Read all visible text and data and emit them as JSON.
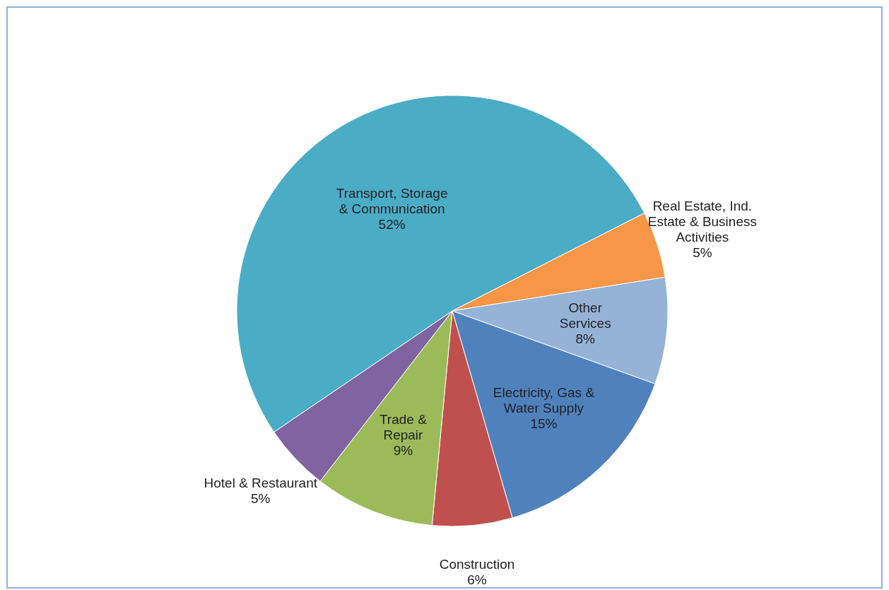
{
  "chart_data": {
    "type": "pie",
    "categories": [
      "Real Estate, Ind. Estate & Business Activities",
      "Other Services",
      "Electricity, Gas & Water Supply",
      "Construction",
      "Trade & Repair",
      "Hotel & Restaurant",
      "Transport, Storage & Communication"
    ],
    "values": [
      5,
      8,
      15,
      6,
      9,
      5,
      52
    ],
    "value_labels": [
      "5%",
      "8%",
      "15%",
      "6%",
      "9%",
      "5%",
      "52%"
    ],
    "colors": [
      "#f79646",
      "#95b3d7",
      "#4f81bd",
      "#c0504d",
      "#9bbb59",
      "#8064a2",
      "#4bacc6"
    ]
  }
}
